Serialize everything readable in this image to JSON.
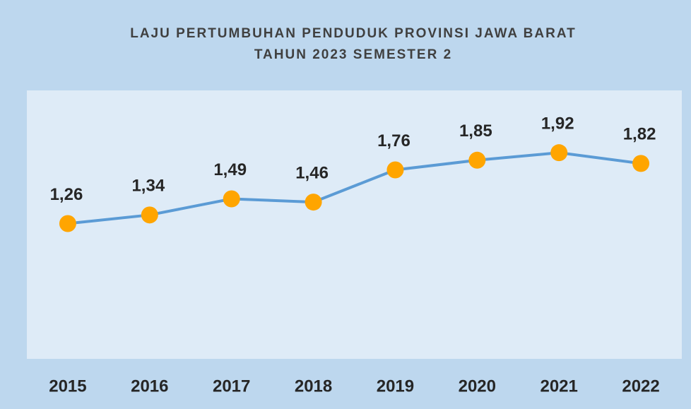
{
  "chart_data": {
    "type": "line",
    "title": [
      "LAJU PERTUMBUHAN PENDUDUK PROVINSI JAWA BARAT",
      "TAHUN 2023 SEMESTER 2"
    ],
    "categories": [
      "2015",
      "2016",
      "2017",
      "2018",
      "2019",
      "2020",
      "2021",
      "2022"
    ],
    "values": [
      1.26,
      1.34,
      1.49,
      1.46,
      1.76,
      1.85,
      1.92,
      1.82
    ],
    "value_labels": [
      "1,26",
      "1,34",
      "1,49",
      "1,46",
      "1,76",
      "1,85",
      "1,92",
      "1,82"
    ],
    "ylim": [
      0,
      2.5
    ],
    "color": "#5b9bd5",
    "marker_color": "#ffa500",
    "plot_background": "#deebf7",
    "background": "#bdd7ee"
  }
}
